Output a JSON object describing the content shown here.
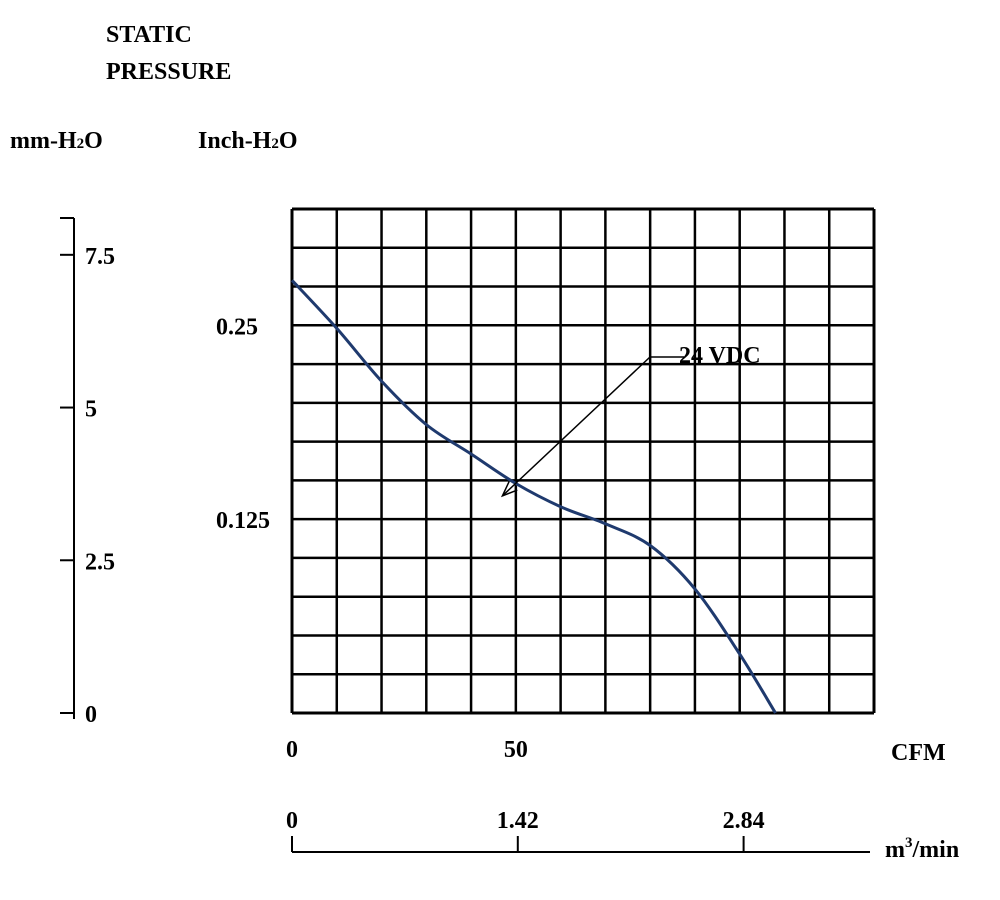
{
  "chart_data": {
    "type": "line",
    "title_lines": [
      "STATIC",
      "PRESSURE"
    ],
    "y_units_outer": "mm-H",
    "y_units_outer_sub": "2",
    "y_units_outer_tail": "O",
    "y_units_inner": "Inch-H",
    "y_units_inner_sub": "2",
    "y_units_inner_tail": "O",
    "x_units_primary": "CFM",
    "x_units_secondary": "m",
    "x_units_secondary_sup": "3",
    "x_units_secondary_tail": "/min",
    "xlim": [
      0,
      130
    ],
    "ylim_inch": [
      0,
      0.325
    ],
    "ylim_mm": [
      0,
      8.25
    ],
    "grid": true,
    "grid_cols": 13,
    "grid_rows": 13,
    "x_ticks_cfm": [
      "0",
      "50"
    ],
    "x_ticks_cfm_values": [
      0,
      50
    ],
    "x_ticks_m3": [
      "0",
      "1.42",
      "2.84"
    ],
    "x_ticks_m3_values": [
      0,
      1.42,
      2.84
    ],
    "y_ticks_inch": [
      "0.25",
      "0.125"
    ],
    "y_ticks_inch_values": [
      0.25,
      0.125
    ],
    "y_ticks_mm": [
      "7.5",
      "5",
      "2.5",
      "0"
    ],
    "y_ticks_mm_values": [
      7.5,
      5,
      2.5,
      0
    ],
    "series": [
      {
        "name": "24 VDC",
        "color": "#1f3a6e",
        "x": [
          0,
          10,
          20,
          30,
          40,
          50,
          60,
          70,
          80,
          90,
          100,
          108
        ],
        "y": [
          0.279,
          0.248,
          0.214,
          0.186,
          0.167,
          0.148,
          0.133,
          0.122,
          0.108,
          0.08,
          0.038,
          0.0
        ]
      }
    ],
    "annotation": {
      "text": "24 VDC",
      "target_x": 47,
      "target_y": 0.14
    }
  }
}
